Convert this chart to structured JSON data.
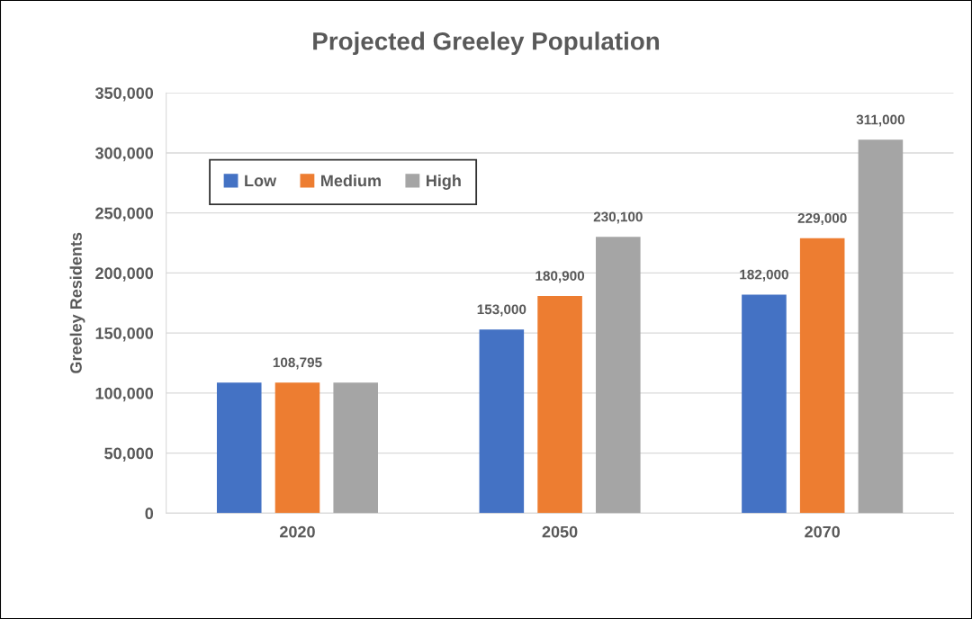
{
  "chart_data": {
    "type": "bar",
    "title": "Projected Greeley Population",
    "ylabel": "Greeley Residents",
    "categories": [
      "2020",
      "2050",
      "2070"
    ],
    "series": [
      {
        "name": "Low",
        "color": "#4472c4",
        "values": [
          108795,
          153000,
          182000
        ],
        "value_labels": [
          null,
          "153,000",
          "182,000"
        ]
      },
      {
        "name": "Medium",
        "color": "#ed7d31",
        "values": [
          108795,
          180900,
          229000
        ],
        "value_labels": [
          "108,795",
          "180,900",
          "229,000"
        ]
      },
      {
        "name": "High",
        "color": "#a5a5a5",
        "values": [
          108795,
          230100,
          311000
        ],
        "value_labels": [
          null,
          "230,100",
          "311,000"
        ]
      }
    ],
    "ylim": [
      0,
      350000
    ],
    "yticks": [
      {
        "value": 0,
        "label": "0"
      },
      {
        "value": 50000,
        "label": "50,000"
      },
      {
        "value": 100000,
        "label": "100,000"
      },
      {
        "value": 150000,
        "label": "150,000"
      },
      {
        "value": 200000,
        "label": "200,000"
      },
      {
        "value": 250000,
        "label": "250,000"
      },
      {
        "value": 300000,
        "label": "300,000"
      },
      {
        "value": 350000,
        "label": "350,000"
      }
    ],
    "grid": "y",
    "legend": "top left"
  }
}
